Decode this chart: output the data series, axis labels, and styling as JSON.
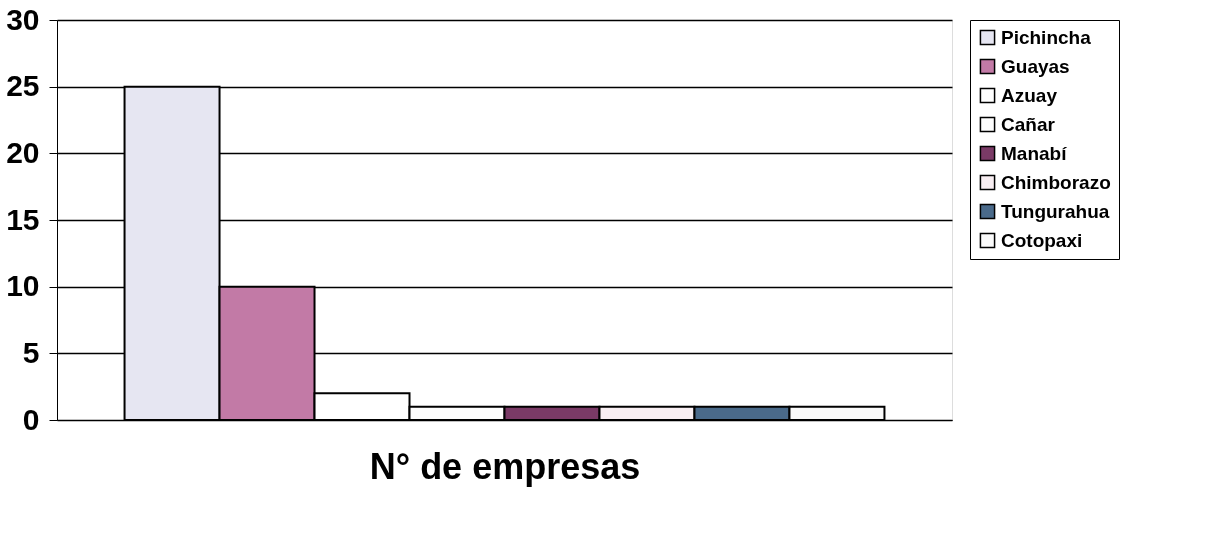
{
  "chart_data": {
    "type": "bar",
    "xlabel": "N° de empresas",
    "categories": [
      null
    ],
    "series": [
      {
        "name": "Pichincha",
        "color": "#e6e6f2",
        "values": [
          25
        ]
      },
      {
        "name": "Guayas",
        "color": "#c27aa6",
        "values": [
          10
        ]
      },
      {
        "name": "Azuay",
        "color": "#ffffff",
        "values": [
          2
        ]
      },
      {
        "name": "Cañar",
        "color": "#fdfdfd",
        "values": [
          1
        ]
      },
      {
        "name": "Manabí",
        "color": "#7a3a66",
        "values": [
          1
        ]
      },
      {
        "name": "Chimborazo",
        "color": "#f8eef2",
        "values": [
          1
        ]
      },
      {
        "name": "Tungurahua",
        "color": "#4a6a8a",
        "values": [
          1
        ]
      },
      {
        "name": "Cotopaxi",
        "color": "#fafafa",
        "values": [
          1
        ]
      }
    ],
    "ylim": [
      0,
      30
    ],
    "yticks": [
      0,
      5,
      10,
      15,
      20,
      25,
      30
    ],
    "grid": "y",
    "legend": "right",
    "tick_labels": "y"
  }
}
